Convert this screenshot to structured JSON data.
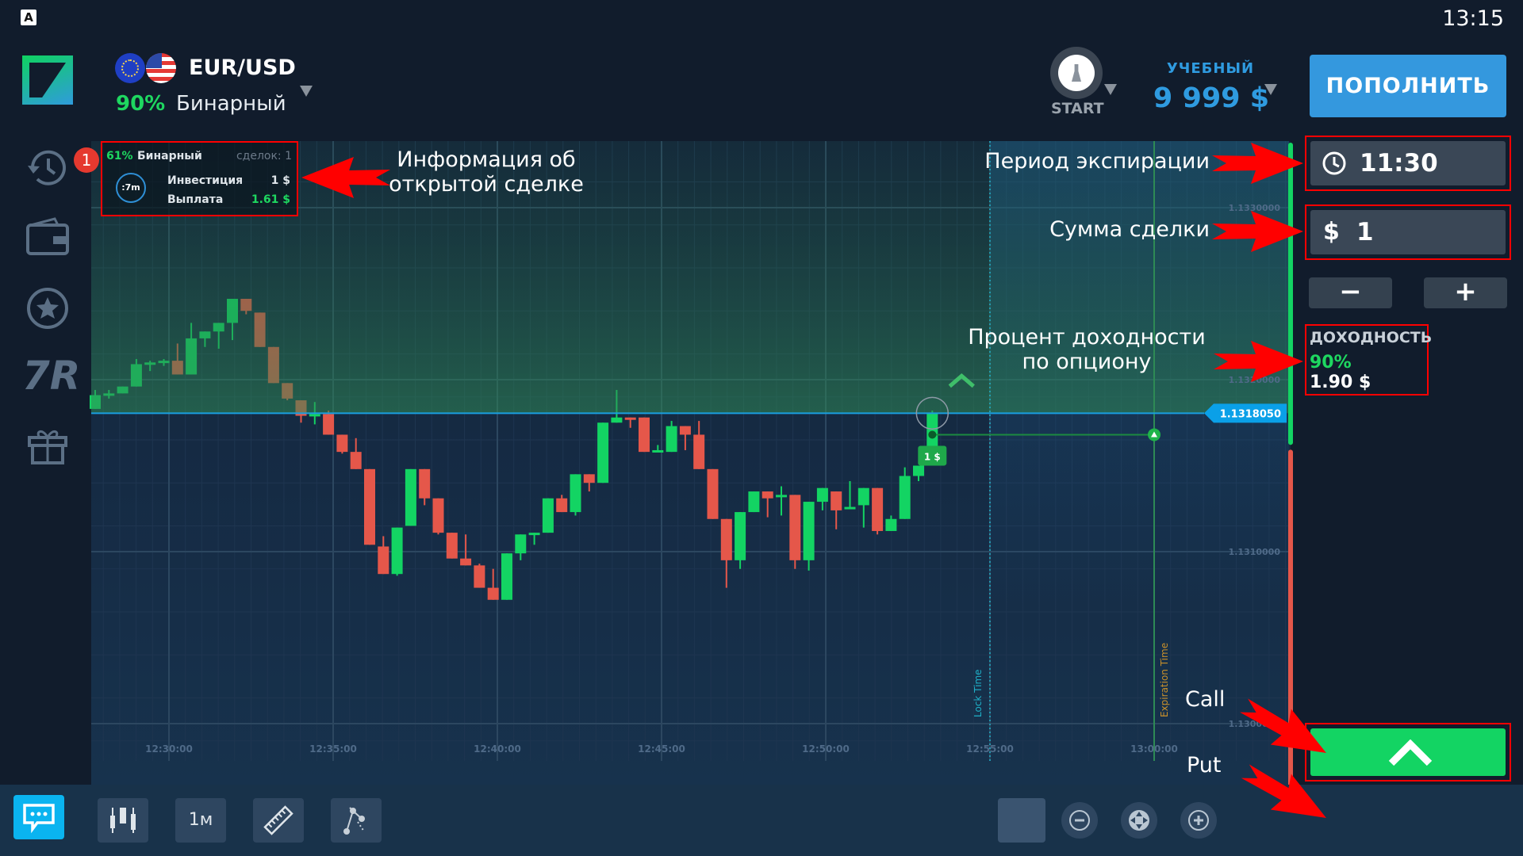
{
  "status_bar": {
    "app_icon_letter": "A",
    "time": "13:15"
  },
  "header": {
    "asset": "EUR/USD",
    "payout_percent": "90%",
    "option_type": "Бинарный",
    "profile_label": "START",
    "account_type": "УЧЕБНЫЙ",
    "balance": "9 999 $",
    "deposit_label": "ПОПОЛНИТЬ"
  },
  "sidebar": {
    "items": [
      {
        "icon": "history-icon",
        "badge": "1"
      },
      {
        "icon": "wallet-icon"
      },
      {
        "icon": "star-icon"
      },
      {
        "icon": "tournament-7r-icon",
        "label": "7R"
      },
      {
        "icon": "gift-icon"
      }
    ]
  },
  "open_trade": {
    "payout": "61%",
    "type": "Бинарный",
    "deals": "сделок: 1",
    "timer": ":7m",
    "investment_label": "Инвестиция",
    "investment_value": "1 $",
    "payout_label": "Выплата",
    "payout_value": "1.61 $"
  },
  "annotations": {
    "info": [
      "Информация об",
      "открытой сделке"
    ],
    "expiration": "Период экспирации",
    "amount": "Сумма сделки",
    "yield": [
      "Процент доходности",
      "по опциону"
    ],
    "call": "Call",
    "put": "Put"
  },
  "trade_panel": {
    "expiration": "11:30",
    "currency": "$",
    "amount": "1",
    "minus": "−",
    "plus": "+",
    "yield_title": "ДОХОДНОСТЬ",
    "yield_percent": "90%",
    "yield_amount": "1.90 $"
  },
  "toolbar": {
    "timeframe": "1м"
  },
  "colors": {
    "up": "#13d463",
    "down": "#e5574a",
    "accent": "#3498de",
    "price_tag": "#0aa0e8"
  },
  "chart_data": {
    "type": "candlestick",
    "price_ticks": [
      "1.1330000",
      "1.1320000",
      "1.1310000",
      "1.1300000"
    ],
    "price_tick_values": [
      1.133,
      1.132,
      1.131,
      1.13
    ],
    "time_ticks": [
      "12:30:00",
      "12:35:00",
      "12:40:00",
      "12:45:00",
      "12:50:00",
      "12:55:00",
      "13:00:00"
    ],
    "current_price": "1.1318050",
    "current_price_value": 1.131805,
    "lock_time_label": "Lock Time",
    "lock_time": "12:55:00",
    "expiration_time_label": "Expiration Time",
    "expiration_time": "13:00:00",
    "trade_marker_label": "1 $",
    "trade_entry_price": 1.13168,
    "candles_ohlc": [
      [
        1.13183,
        1.13194,
        1.13183,
        1.13191
      ],
      [
        1.13191,
        1.13194,
        1.13189,
        1.13192
      ],
      [
        1.13192,
        1.13196,
        1.13192,
        1.13196
      ],
      [
        1.13196,
        1.13212,
        1.13196,
        1.13209
      ],
      [
        1.13209,
        1.13211,
        1.13205,
        1.1321
      ],
      [
        1.1321,
        1.13212,
        1.13208,
        1.13211
      ],
      [
        1.13211,
        1.13221,
        1.13203,
        1.13203
      ],
      [
        1.13203,
        1.13233,
        1.13203,
        1.13224
      ],
      [
        1.13224,
        1.13228,
        1.13219,
        1.13228
      ],
      [
        1.13228,
        1.13233,
        1.13218,
        1.13233
      ],
      [
        1.13233,
        1.13247,
        1.13223,
        1.13247
      ],
      [
        1.13247,
        1.13247,
        1.13238,
        1.1324
      ],
      [
        1.13239,
        1.13239,
        1.13219,
        1.13219
      ],
      [
        1.13219,
        1.13219,
        1.13198,
        1.13198
      ],
      [
        1.13198,
        1.13198,
        1.13188,
        1.13189
      ],
      [
        1.13188,
        1.13188,
        1.13175,
        1.13179
      ],
      [
        1.13179,
        1.13187,
        1.13174,
        1.1318
      ],
      [
        1.1318,
        1.13182,
        1.13168,
        1.13168
      ],
      [
        1.13168,
        1.13168,
        1.13157,
        1.13158
      ],
      [
        1.13158,
        1.13166,
        1.13148,
        1.13148
      ],
      [
        1.13148,
        1.13148,
        1.13104,
        1.13104
      ],
      [
        1.13103,
        1.13109,
        1.13087,
        1.13087
      ],
      [
        1.13087,
        1.13114,
        1.13086,
        1.13114
      ],
      [
        1.13115,
        1.13148,
        1.13115,
        1.13148
      ],
      [
        1.13148,
        1.13148,
        1.13127,
        1.13131
      ],
      [
        1.13131,
        1.13131,
        1.1311,
        1.13111
      ],
      [
        1.13111,
        1.13111,
        1.13096,
        1.13096
      ],
      [
        1.13096,
        1.1311,
        1.13092,
        1.13092
      ],
      [
        1.13092,
        1.13093,
        1.13079,
        1.13079
      ],
      [
        1.13079,
        1.1309,
        1.13072,
        1.13072
      ],
      [
        1.13072,
        1.13099,
        1.13072,
        1.13099
      ],
      [
        1.13099,
        1.1311,
        1.13095,
        1.1311
      ],
      [
        1.1311,
        1.13111,
        1.13104,
        1.13111
      ],
      [
        1.13111,
        1.13131,
        1.13111,
        1.13131
      ],
      [
        1.13131,
        1.13133,
        1.13123,
        1.13123
      ],
      [
        1.13123,
        1.13145,
        1.13121,
        1.13145
      ],
      [
        1.13145,
        1.13145,
        1.13135,
        1.1314
      ],
      [
        1.1314,
        1.13175,
        1.1314,
        1.13175
      ],
      [
        1.13175,
        1.13194,
        1.13175,
        1.13178
      ],
      [
        1.13178,
        1.13178,
        1.13172,
        1.13177
      ],
      [
        1.13178,
        1.13178,
        1.13158,
        1.13158
      ],
      [
        1.13158,
        1.13162,
        1.13158,
        1.13159
      ],
      [
        1.13158,
        1.13176,
        1.13158,
        1.13173
      ],
      [
        1.13173,
        1.13173,
        1.13159,
        1.13168
      ],
      [
        1.13168,
        1.13176,
        1.13148,
        1.13148
      ],
      [
        1.13148,
        1.13148,
        1.13119,
        1.13119
      ],
      [
        1.13119,
        1.13119,
        1.13079,
        1.13095
      ],
      [
        1.13095,
        1.13123,
        1.1309,
        1.13123
      ],
      [
        1.13123,
        1.13135,
        1.13123,
        1.13135
      ],
      [
        1.13135,
        1.13135,
        1.1312,
        1.13131
      ],
      [
        1.13132,
        1.13138,
        1.13121,
        1.13133
      ],
      [
        1.13133,
        1.13133,
        1.1309,
        1.13095
      ],
      [
        1.13095,
        1.13129,
        1.13089,
        1.13129
      ],
      [
        1.13129,
        1.13137,
        1.13124,
        1.13137
      ],
      [
        1.13135,
        1.13135,
        1.13113,
        1.13124
      ],
      [
        1.13125,
        1.13141,
        1.13125,
        1.13126
      ],
      [
        1.13127,
        1.13137,
        1.13114,
        1.13137
      ],
      [
        1.13137,
        1.13137,
        1.1311,
        1.13112
      ],
      [
        1.13112,
        1.13121,
        1.13112,
        1.13119
      ],
      [
        1.13119,
        1.13149,
        1.13119,
        1.13144
      ],
      [
        1.13144,
        1.1315,
        1.13141,
        1.1315
      ],
      [
        1.1315,
        1.13182,
        1.1315,
        1.131805
      ]
    ]
  }
}
